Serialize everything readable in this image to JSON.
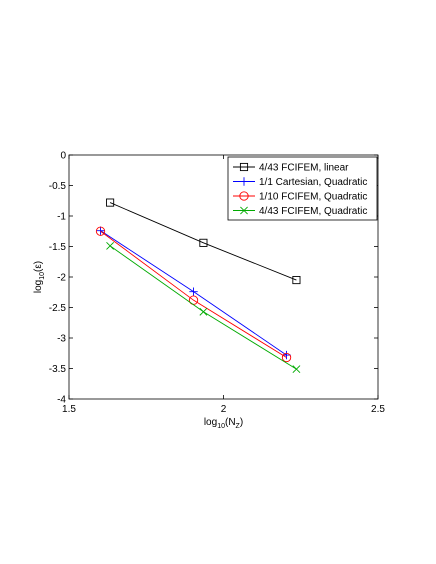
{
  "chart_data": {
    "type": "line",
    "title": "",
    "xlabel": "log",
    "xlabel_sub": "10",
    "xlabel_arg": "(N",
    "xlabel_arg_sub": "Z",
    "xlabel_close": ")",
    "ylabel": "log",
    "ylabel_sub": "10",
    "ylabel_arg": "(ε)",
    "xlim": [
      1.5,
      2.5
    ],
    "ylim": [
      -4,
      0
    ],
    "xticks": [
      1.5,
      2,
      2.5
    ],
    "xtick_labels": [
      "1.5",
      "2",
      "2.5"
    ],
    "yticks": [
      0,
      -0.5,
      -1,
      -1.5,
      -2,
      -2.5,
      -3,
      -3.5,
      -4
    ],
    "ytick_labels": [
      "0",
      "-0.5",
      "-1",
      "-1.5",
      "-2",
      "-2.5",
      "-3",
      "-3.5",
      "-4"
    ],
    "grid": false,
    "legend_position": "top-right",
    "series": [
      {
        "name": "4/43 FCIFEM, linear",
        "color": "#000000",
        "marker": "square",
        "x": [
          1.633,
          1.935,
          2.236
        ],
        "y": [
          -0.78,
          -1.44,
          -2.05
        ]
      },
      {
        "name": "1/1 Cartesian, Quadratic",
        "color": "#0000ff",
        "marker": "plus",
        "x": [
          1.602,
          1.903,
          2.204
        ],
        "y": [
          -1.24,
          -2.24,
          -3.28
        ]
      },
      {
        "name": "1/10 FCIFEM, Quadratic",
        "color": "#ff0000",
        "marker": "circle",
        "x": [
          1.602,
          1.903,
          2.204
        ],
        "y": [
          -1.25,
          -2.38,
          -3.32
        ]
      },
      {
        "name": "4/43 FCIFEM, Quadratic",
        "color": "#00aa00",
        "marker": "x",
        "x": [
          1.633,
          1.935,
          2.236
        ],
        "y": [
          -1.49,
          -2.57,
          -3.51
        ]
      }
    ]
  }
}
